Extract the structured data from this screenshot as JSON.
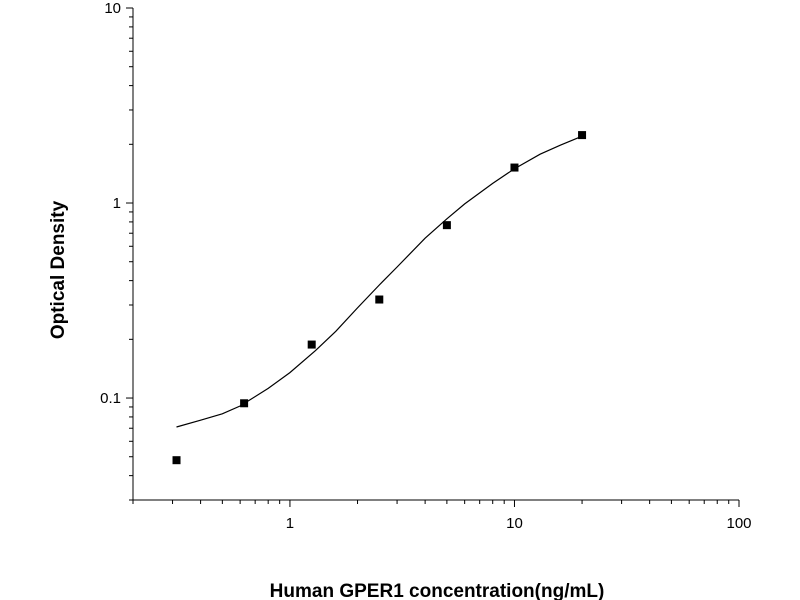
{
  "chart_data": {
    "type": "scatter",
    "title": "",
    "xlabel": "Human GPER1 concentration(ng/mL)",
    "ylabel": "Optical Density",
    "xscale": "log",
    "yscale": "log",
    "xlim": [
      0.2,
      100
    ],
    "ylim": [
      0.03,
      10
    ],
    "x_ticks": [
      1,
      10,
      100
    ],
    "x_tick_labels": [
      "1",
      "10",
      "100"
    ],
    "y_ticks": [
      0.1,
      1,
      10
    ],
    "y_tick_labels": [
      "0.1",
      "1",
      "10"
    ],
    "grid": false,
    "legend": "none",
    "series": [
      {
        "kind": "points",
        "marker": "square",
        "color": "#000000",
        "x": [
          0.3125,
          0.625,
          1.25,
          2.5,
          5,
          10,
          20
        ],
        "y": [
          0.048,
          0.094,
          0.188,
          0.32,
          0.77,
          1.52,
          2.23
        ]
      },
      {
        "kind": "fitted-curve",
        "color": "#000000",
        "x": [
          0.3125,
          0.4,
          0.5,
          0.6,
          0.8,
          1,
          1.3,
          1.6,
          2,
          2.5,
          3,
          4,
          5,
          6,
          8,
          10,
          13,
          16,
          20
        ],
        "y": [
          0.071,
          0.077,
          0.083,
          0.091,
          0.112,
          0.135,
          0.175,
          0.22,
          0.29,
          0.38,
          0.47,
          0.66,
          0.83,
          0.99,
          1.26,
          1.5,
          1.78,
          1.98,
          2.2
        ]
      }
    ]
  }
}
